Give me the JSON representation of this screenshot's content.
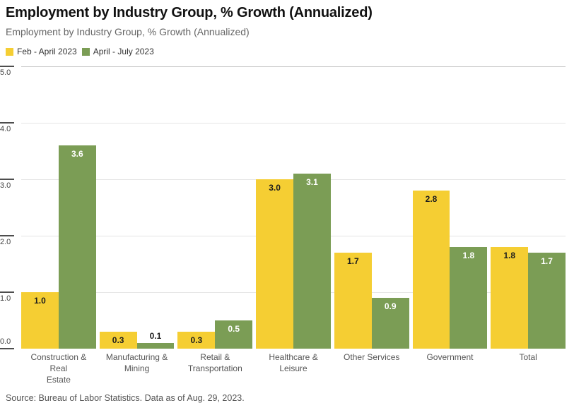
{
  "header": {
    "title": "Employment by Industry Group, % Growth (Annualized)",
    "subtitle": "Employment by Industry Group, % Growth (Annualized)"
  },
  "legend": {
    "items": [
      {
        "label": "Feb - April 2023",
        "color": "#F5CE33"
      },
      {
        "label": "April - July 2023",
        "color": "#7B9D55"
      }
    ]
  },
  "chart_data": {
    "type": "bar",
    "title": "Employment by Industry Group, % Growth (Annualized)",
    "categories": [
      "Construction & Real Estate",
      "Manufacturing & Mining",
      "Retail & Transportation",
      "Healthcare & Leisure",
      "Other Services",
      "Government",
      "Total"
    ],
    "category_lines": [
      [
        "Construction & Real",
        "Estate"
      ],
      [
        "Manufacturing &",
        "Mining"
      ],
      [
        "Retail &",
        "Transportation"
      ],
      [
        "Healthcare & Leisure"
      ],
      [
        "Other Services"
      ],
      [
        "Government"
      ],
      [
        "Total"
      ]
    ],
    "series": [
      {
        "name": "Feb - April 2023",
        "color": "#F5CE33",
        "label_color": "#1d1d1d",
        "values": [
          1.0,
          0.3,
          0.3,
          3.0,
          1.7,
          2.8,
          1.8
        ],
        "labels": [
          "1.0",
          "0.3",
          "0.3",
          "3.0",
          "1.7",
          "2.8",
          "1.8"
        ]
      },
      {
        "name": "April - July 2023",
        "color": "#7B9D55",
        "label_color": "#ffffff",
        "values": [
          3.6,
          0.1,
          0.5,
          3.1,
          0.9,
          1.8,
          1.7
        ],
        "labels": [
          "3.6",
          "0.1",
          "0.5",
          "3.1",
          "0.9",
          "1.8",
          "1.7"
        ]
      }
    ],
    "outside_label_color": "#1d1d1d",
    "ylim": [
      0,
      5
    ],
    "yticks": [
      {
        "value": 0,
        "label": "0.0"
      },
      {
        "value": 1,
        "label": "1.0"
      },
      {
        "value": 2,
        "label": "2.0"
      },
      {
        "value": 3,
        "label": "3.0"
      },
      {
        "value": 4,
        "label": "4.0"
      },
      {
        "value": 5,
        "label": "5.0"
      }
    ],
    "grid": true,
    "legend_position": "top-left",
    "colors": {
      "gridline": "#e5e5e5",
      "gridline_top": "#c8c8c8",
      "axis_tick": "#4d4d4d"
    }
  },
  "footer": {
    "source": "Source: Bureau of Labor Statistics. Data as of Aug. 29, 2023."
  }
}
